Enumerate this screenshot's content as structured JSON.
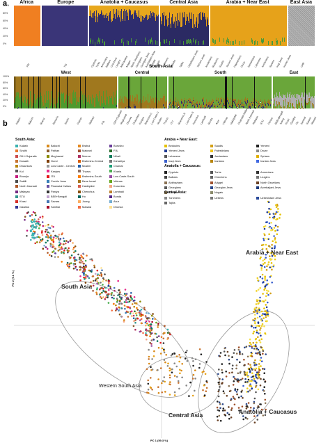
{
  "panel_a": "a",
  "panel_b": "b",
  "chart_data": [
    {
      "type": "bar",
      "subtype": "stacked-admixture",
      "yticks": [
        "100%",
        "80%",
        "60%",
        "40%",
        "20%",
        "0%"
      ],
      "ylim": [
        0,
        100
      ],
      "regions": [
        {
          "name": "Africa",
          "color": "#f07f21",
          "populations": [
            "YRI"
          ]
        },
        {
          "name": "Europe",
          "color": "#3a3578",
          "populations": [
            "TSI"
          ]
        },
        {
          "name": "Anatolia + Caucasus",
          "color": "#2f2d6e",
          "populations": [
            "Cypriots",
            "Turks",
            "Armenians",
            "Balkars",
            "Chechens",
            "Lezgins",
            "Abkhazians",
            "Adygei",
            "North Ossetians",
            "Georgians",
            "Georgian Jews",
            "Azerbaijani Jews",
            "Kumyks",
            "Nogais"
          ]
        },
        {
          "name": "Central Asia",
          "color": "#2b2a63",
          "populations": [
            "Turkmens",
            "Uzbeks",
            "Tajiks",
            "Uzbekistani Jews",
            "Yemeni Jews",
            "Jordanians"
          ]
        },
        {
          "name": "Arabia + Near East",
          "color": "#e6a21a",
          "populations": [
            "Bedouins",
            "Saudis",
            "Yemeni Jews",
            "Palestinians",
            "Druze",
            "Samaritans",
            "Lebanese",
            "Jordanians",
            "Syrians",
            "Iraqi Jews",
            "Iranian Jews"
          ]
        },
        {
          "name": "East Asia",
          "color": "#a8a8a8",
          "populations": [
            "CHB"
          ]
        }
      ]
    },
    {
      "type": "bar",
      "subtype": "stacked-admixture",
      "title": "South Asia",
      "yticks": [
        "100%",
        "80%",
        "60%",
        "40%",
        "20%",
        "0%"
      ],
      "ylim": [
        0,
        100
      ],
      "groups": [
        {
          "name": "West",
          "populations": [
            "Kalash",
            "Balochi",
            "Brahui",
            "Burusho",
            "Sindhi",
            "Pathan",
            "Makrani",
            "PJL",
            "GIH+Gujaratis"
          ]
        },
        {
          "name": "Central",
          "populations": [
            "Meghawal",
            "Dhurwa",
            "Dhaurkars",
            "Kanjars",
            "Brahmins-C",
            "Low Caste-C",
            "Muslim",
            "Tharus"
          ]
        },
        {
          "name": "South",
          "populations": [
            "ITU",
            "Brahmins-S",
            "Low Caste-S",
            "Kurumba",
            "Lambadi",
            "Bonda",
            "Asur",
            "Velmas",
            "Hakkipikki",
            "Piramalai Kallars",
            "North Kannadi",
            "Malayan",
            "STU",
            "Paniya"
          ]
        },
        {
          "name": "East",
          "populations": [
            "BEB+Bengali",
            "Juang",
            "Khasi",
            "Gadaba",
            "Ho",
            "Santhal",
            "Savara",
            "Mawasi"
          ]
        }
      ]
    },
    {
      "type": "scatter",
      "xlabel": "PC 1 (59.3 %)",
      "ylabel": "PC 2 (9.1 %)",
      "region_labels": [
        "South Asia",
        "Arabia + Near East",
        "Western South Asia",
        "Central Asia",
        "Anatolia + Caucasus"
      ],
      "legend": {
        "south_asia_title": "South Asia:",
        "south_asia": [
          [
            "Kalash",
            "#3bb3b0"
          ],
          [
            "Balochi",
            "#d98a1a"
          ],
          [
            "Brahui",
            "#e68a1f"
          ],
          [
            "Burusho",
            "#6a3d9a"
          ],
          [
            "Sindhi",
            "#e8782a"
          ],
          [
            "Pathan",
            "#8b5a2b"
          ],
          [
            "Makrani",
            "#a05030"
          ],
          [
            "PJL",
            "#2a6e2a"
          ],
          [
            "GIH+Gujaratis",
            "#cc4c4c"
          ],
          [
            "Meghawal",
            "#8b8b00"
          ],
          [
            "Meena",
            "#b03060"
          ],
          [
            "Nihali",
            "#0e7a5a"
          ],
          [
            "Dosadh",
            "#c87533"
          ],
          [
            "Gond",
            "#7f3f00"
          ],
          [
            "Brahmins-Central",
            "#d95f02"
          ],
          [
            "Kshatriya",
            "#777"
          ],
          [
            "Dhaurkars",
            "#b8860b"
          ],
          [
            "Low Caste - Central",
            "#999"
          ],
          [
            "Muslim",
            "#225ea8"
          ],
          [
            "Chamar",
            "#1b9e77"
          ],
          [
            "Kol",
            "#555"
          ],
          [
            "Kanjars",
            "#e7298a"
          ],
          [
            "Tharus",
            "#8d6e63"
          ],
          [
            "Kharia",
            "#4caf50"
          ],
          [
            "Bhunjia",
            "#c51b7d"
          ],
          [
            "ITU",
            "#e41a1c"
          ],
          [
            "Brahmins-South",
            "#ff7f00"
          ],
          [
            "Low Caste-South",
            "#984ea3"
          ],
          [
            "Sakilli",
            "#4d4d4d"
          ],
          [
            "Cochin Jews",
            "#377eb8"
          ],
          [
            "Bene Israel",
            "#a6761d"
          ],
          [
            "Velmas",
            "#66a61e"
          ],
          [
            "North Kannadi",
            "#b15928"
          ],
          [
            "Piramalai Kallars",
            "#6a51a3"
          ],
          [
            "Hakkipikki",
            "#d6604d"
          ],
          [
            "Kurumba",
            "#f4a582"
          ],
          [
            "Malayan",
            "#762a83"
          ],
          [
            "Paniya",
            "#333"
          ],
          [
            "Chenchus",
            "#8c510a"
          ],
          [
            "Lambadi",
            "#bf812d"
          ],
          [
            "STU",
            "#35978f"
          ],
          [
            "BEB+Bengali",
            "#c2a5cf"
          ],
          [
            "Ho",
            "#01665e"
          ],
          [
            "Bonda",
            "#542788"
          ],
          [
            "Khasi",
            "#d73027"
          ],
          [
            "Savara",
            "#4575b4"
          ],
          [
            "Juang",
            "#fdae61"
          ],
          [
            "Asur",
            "#74add1"
          ],
          [
            "Gadaba",
            "#313695"
          ],
          [
            "Santhal",
            "#a50026"
          ],
          [
            "Mawasi",
            "#f46d43"
          ],
          [
            "Dhurwa",
            "#fee090"
          ]
        ],
        "arabia_title": "Arabia + Near East:",
        "arabia": [
          [
            "Bedouins",
            "#e6c200"
          ],
          [
            "Saudis",
            "#d4a017"
          ],
          [
            "Yemeni",
            "#222"
          ],
          [
            "Yemeni Jews",
            "#1f3a93"
          ],
          [
            "Palestinians",
            "#f0c419"
          ],
          [
            "Druze",
            "#888"
          ],
          [
            "Lebanese",
            "#555"
          ],
          [
            "Jordanians",
            "#333"
          ],
          [
            "Syrians",
            "#e0b000"
          ],
          [
            "Iraqi Jews",
            "#3a5fcd"
          ],
          [
            "Iranians",
            "#b8860b"
          ],
          [
            "Iranian Jews",
            "#4169e1"
          ]
        ],
        "anatolia_title": "Anatolia + Caucasus:",
        "anatolia": [
          [
            "Cypriots",
            "#222"
          ],
          [
            "Turks",
            "#555"
          ],
          [
            "Armenians",
            "#333"
          ],
          [
            "Balkars",
            "#444"
          ],
          [
            "Chechens",
            "#666"
          ],
          [
            "Lezgins",
            "#777"
          ],
          [
            "Abkhazians",
            "#8b7355"
          ],
          [
            "Adygei",
            "#a0522d"
          ],
          [
            "North Ossetians",
            "#6b4226"
          ],
          [
            "Georgians",
            "#5a5a5a"
          ],
          [
            "Georgian Jews",
            "#2e4a8b"
          ],
          [
            "Azerbaijani Jews",
            "#1e3a7a"
          ],
          [
            "Kumyks",
            "#7a6a4a"
          ],
          [
            "Nogais",
            "#8a8a6a"
          ]
        ],
        "central_title": "Central Asia:",
        "central": [
          [
            "Turkmens",
            "#888"
          ],
          [
            "Uzbeks",
            "#777"
          ],
          [
            "Uzbekistani Jews",
            "#2a4a9a"
          ],
          [
            "Tajiks",
            "#666"
          ]
        ]
      }
    }
  ]
}
